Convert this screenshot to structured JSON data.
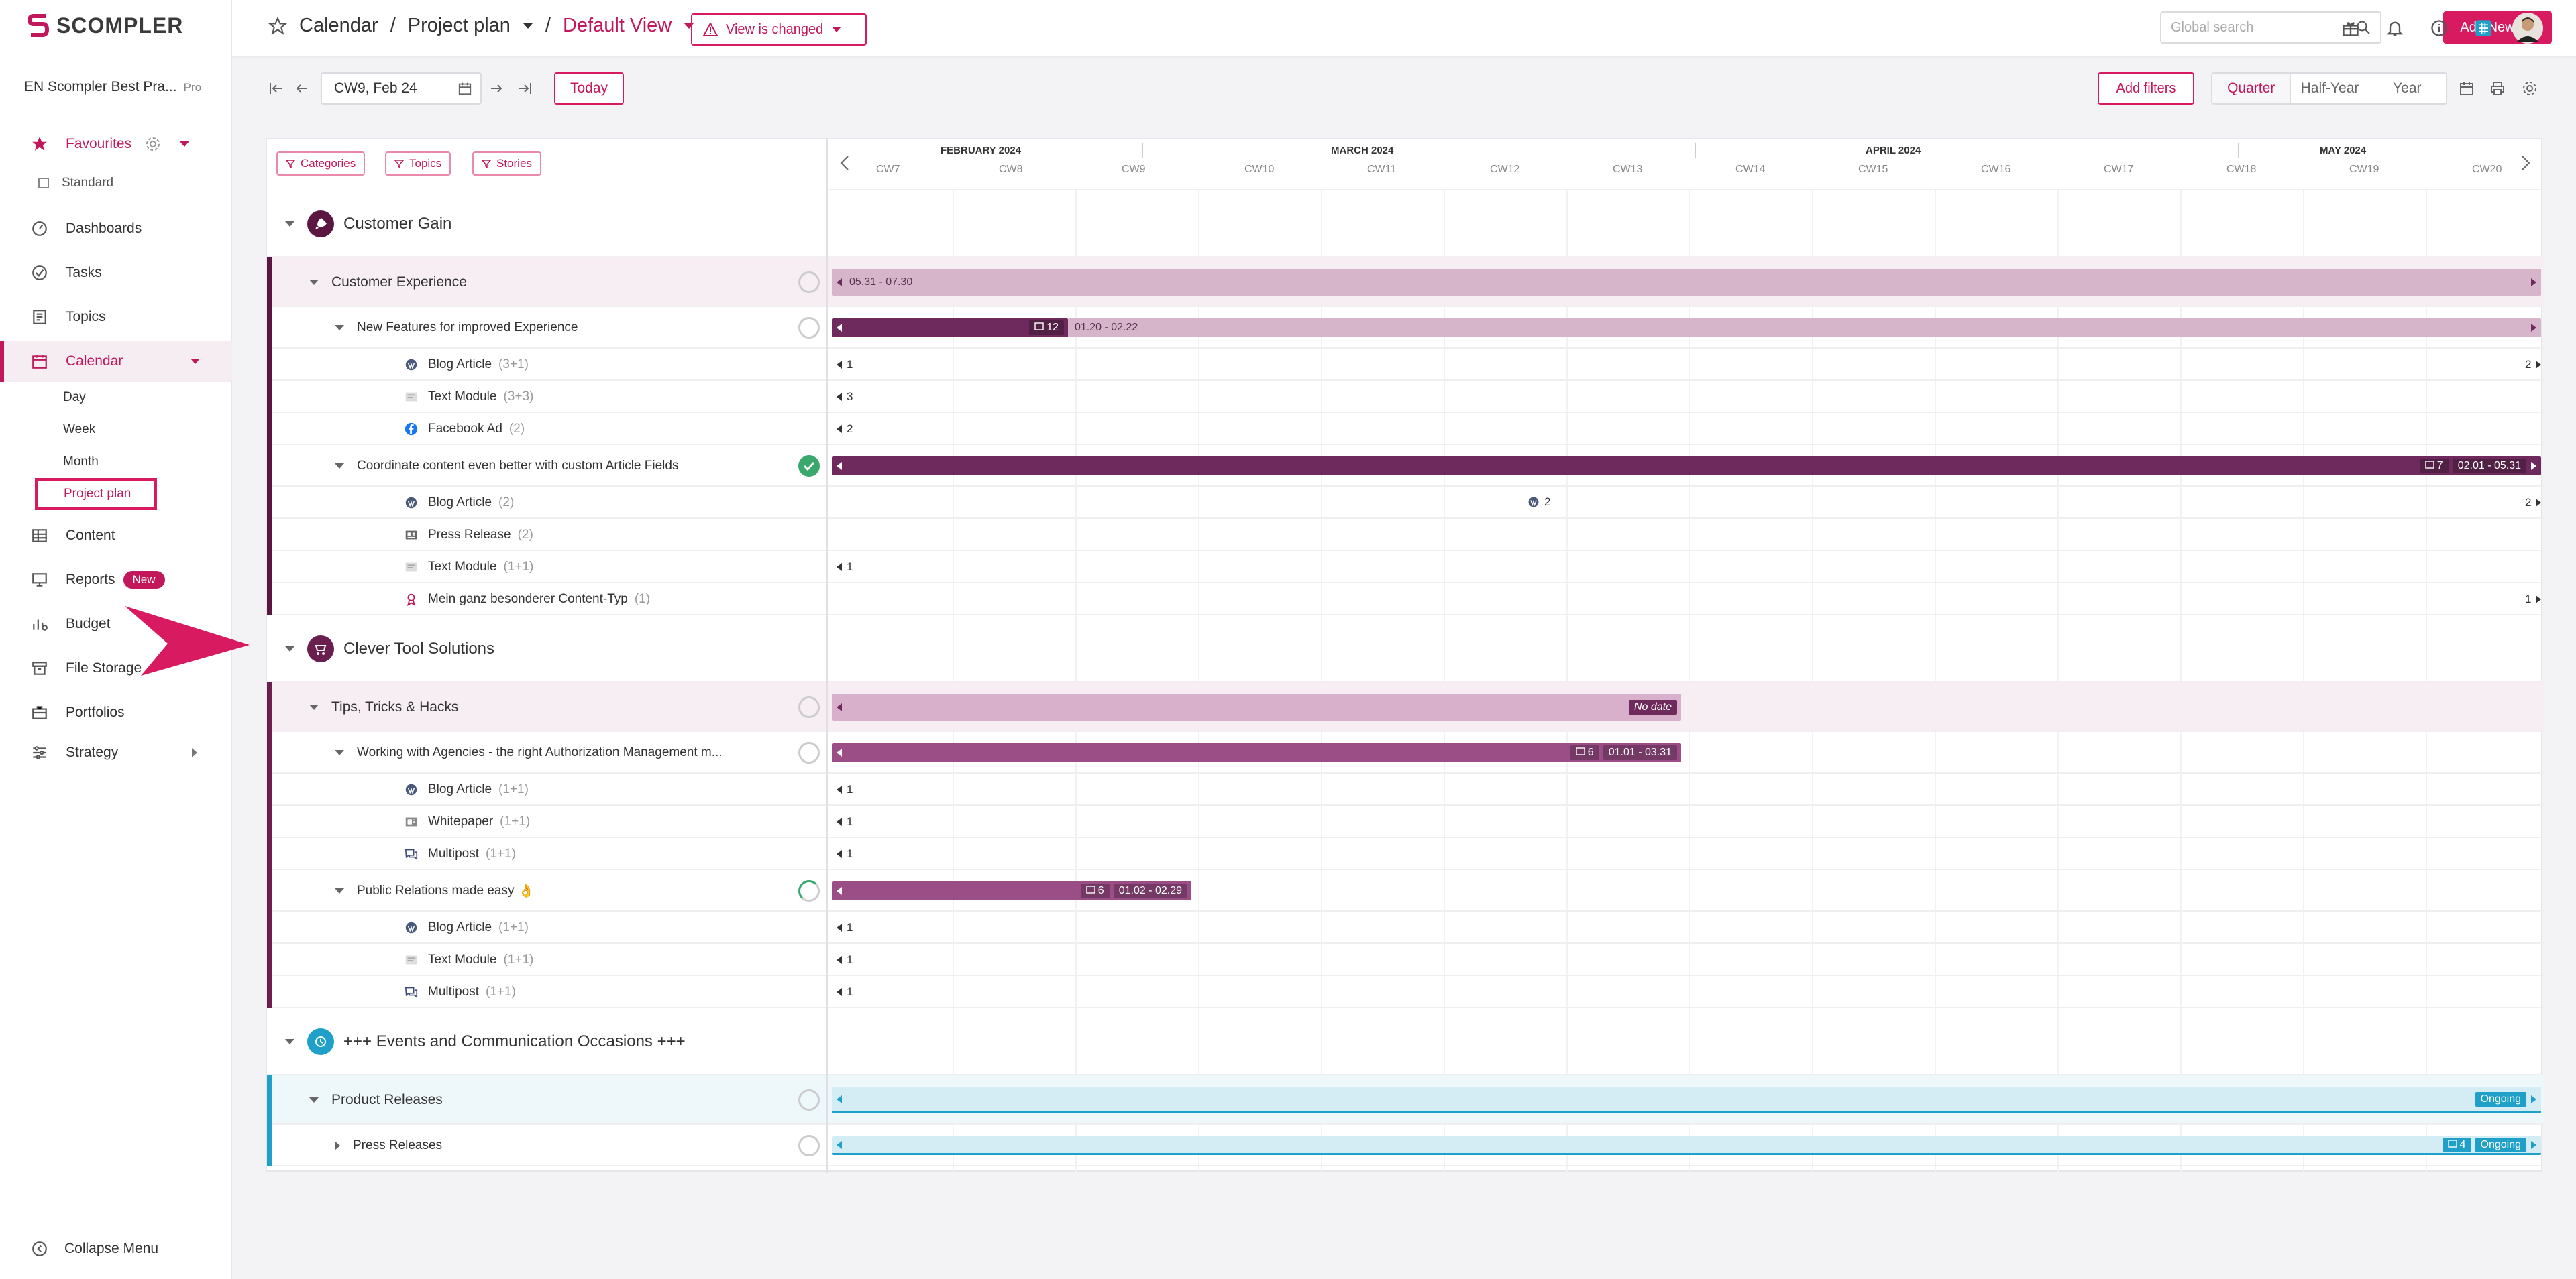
{
  "brand": {
    "name": "SCOMPLER",
    "accent": "#c2185b"
  },
  "workspace": {
    "name": "EN Scompler Best Pra...",
    "plan": "Pro"
  },
  "sidebar": {
    "favourites": "Favourites",
    "standard": "Standard",
    "items": [
      {
        "label": "Dashboards",
        "icon": "dashboard-icon"
      },
      {
        "label": "Tasks",
        "icon": "check-circle-icon"
      },
      {
        "label": "Topics",
        "icon": "document-icon"
      },
      {
        "label": "Calendar",
        "icon": "calendar-icon"
      },
      {
        "label": "Content",
        "icon": "table-icon"
      },
      {
        "label": "Reports",
        "icon": "monitor-icon",
        "badge": "New"
      },
      {
        "label": "Budget",
        "icon": "budget-icon"
      },
      {
        "label": "File Storage",
        "icon": "archive-icon"
      },
      {
        "label": "Portfolios",
        "icon": "briefcase-icon"
      },
      {
        "label": "Strategy",
        "icon": "sliders-icon"
      }
    ],
    "calendar_sub": [
      "Day",
      "Week",
      "Month",
      "Project plan"
    ],
    "collapse": "Collapse Menu"
  },
  "header": {
    "crumb1": "Calendar",
    "sep": "/",
    "crumb2": "Project plan",
    "crumb3": "Default View",
    "view_changed": "View is changed",
    "search_placeholder": "Global search",
    "add_new": "Add New"
  },
  "toolbar": {
    "date": "CW9, Feb 24",
    "today": "Today",
    "add_filters": "Add filters",
    "ranges": [
      "Quarter",
      "Half-Year",
      "Year"
    ],
    "active_range": "Quarter"
  },
  "timeline": {
    "chips": [
      "Categories",
      "Topics",
      "Stories"
    ],
    "months": [
      "FEBRUARY 2024",
      "MARCH 2024",
      "APRIL 2024",
      "MAY 2024"
    ],
    "weeks": [
      "CW7",
      "CW8",
      "CW9",
      "CW10",
      "CW11",
      "CW12",
      "CW13",
      "CW14",
      "CW15",
      "CW16",
      "CW17",
      "CW18",
      "CW19",
      "CW20"
    ]
  },
  "rows": [
    {
      "type": "group",
      "label": "Customer Gain",
      "icon": "rocket-icon",
      "color": "#5b1742"
    },
    {
      "type": "topic",
      "label": "Customer Experience",
      "bar": {
        "text": "05.31 - 07.30"
      }
    },
    {
      "type": "story",
      "label": "New Features for improved Experience",
      "bar": {
        "count": "12",
        "range": "01.20 - 02.22"
      }
    },
    {
      "type": "item",
      "label": "Blog Article",
      "count": "(3+1)",
      "icon": "wordpress-icon",
      "left": "1",
      "right": "2"
    },
    {
      "type": "item",
      "label": "Text Module",
      "count": "(3+3)",
      "icon": "text-module-icon",
      "left": "3"
    },
    {
      "type": "item",
      "label": "Facebook Ad",
      "count": "(2)",
      "icon": "facebook-icon",
      "left": "2"
    },
    {
      "type": "story",
      "label": "Coordinate content even better with custom Article Fields",
      "done": true,
      "bar": {
        "count": "7",
        "range": "02.01 - 05.31"
      }
    },
    {
      "type": "item",
      "label": "Blog Article",
      "count": "(2)",
      "icon": "wordpress-icon",
      "mid": "2",
      "right": "2"
    },
    {
      "type": "item",
      "label": "Press Release",
      "count": "(2)",
      "icon": "press-icon"
    },
    {
      "type": "item",
      "label": "Text Module",
      "count": "(1+1)",
      "icon": "text-module-icon",
      "left": "1"
    },
    {
      "type": "item",
      "label": "Mein ganz besonderer Content-Typ",
      "count": "(1)",
      "icon": "ribbon-icon",
      "right": "1"
    },
    {
      "type": "group",
      "label": "Clever Tool Solutions",
      "icon": "cart-icon",
      "color": "#6b1f4f"
    },
    {
      "type": "topic",
      "label": "Tips, Tricks & Hacks",
      "bar": {
        "text": "No date"
      }
    },
    {
      "type": "story",
      "label": "Working with Agencies - the right Authorization Management m...",
      "bar": {
        "count": "6",
        "range": "01.01 - 03.31"
      }
    },
    {
      "type": "item",
      "label": "Blog Article",
      "count": "(1+1)",
      "icon": "wordpress-icon",
      "left": "1"
    },
    {
      "type": "item",
      "label": "Whitepaper",
      "count": "(1+1)",
      "icon": "whitepaper-icon",
      "left": "1"
    },
    {
      "type": "item",
      "label": "Multipost",
      "count": "(1+1)",
      "icon": "chat-icon",
      "left": "1"
    },
    {
      "type": "story",
      "label": "Public Relations made easy",
      "emoji": "👌",
      "bar": {
        "count": "6",
        "range": "01.02 - 02.29"
      }
    },
    {
      "type": "item",
      "label": "Blog Article",
      "count": "(1+1)",
      "icon": "wordpress-icon",
      "left": "1"
    },
    {
      "type": "item",
      "label": "Text Module",
      "count": "(1+1)",
      "icon": "text-module-icon",
      "left": "1"
    },
    {
      "type": "item",
      "label": "Multipost",
      "count": "(1+1)",
      "icon": "chat-icon",
      "left": "1"
    },
    {
      "type": "group",
      "label": "+++ Events and Communication Occasions +++",
      "icon": "clock-icon",
      "color": "#1ea0c8"
    },
    {
      "type": "topic",
      "label": "Product Releases",
      "bar": {
        "text": "Ongoing"
      }
    },
    {
      "type": "story",
      "label": "Press Releases",
      "bar": {
        "count": "4",
        "range": "Ongoing"
      }
    }
  ],
  "colors": {
    "dark_bar": "#6e2a5c",
    "mid_bar": "#9b4d86",
    "light_bar": "#d6b4c9",
    "topic_bg": "#f4e9ef",
    "blue": "#1ea0c8"
  }
}
